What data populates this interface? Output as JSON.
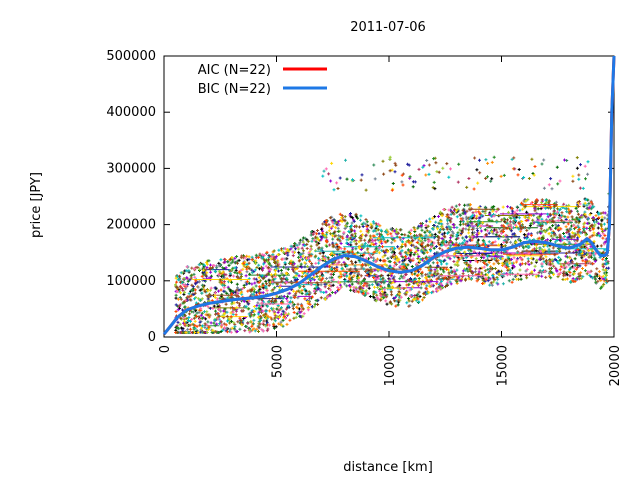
{
  "chart_data": {
    "type": "scatter",
    "title": "2011-07-06",
    "xlabel": "distance [km]",
    "ylabel": "price [JPY]",
    "xlim": [
      0,
      20000
    ],
    "ylim": [
      0,
      500000
    ],
    "x_ticks": [
      0,
      5000,
      10000,
      15000,
      20000
    ],
    "x_tick_labels": [
      "0",
      "5000",
      "10000",
      "15000",
      "20000"
    ],
    "y_ticks": [
      0,
      100000,
      200000,
      300000,
      400000,
      500000
    ],
    "y_tick_labels": [
      "0",
      "100000",
      "200000",
      "300000",
      "400000",
      "500000"
    ],
    "grid": false,
    "legend_position": "top-left",
    "series": [
      {
        "name": "AIC (N=22)",
        "color": "#ff0000",
        "x": [
          0,
          300,
          600,
          1000,
          1500,
          2000,
          2500,
          3000,
          3500,
          4000,
          4500,
          5000,
          5500,
          6000,
          6500,
          7000,
          7500,
          8000,
          8500,
          9000,
          9500,
          10000,
          10500,
          11000,
          11500,
          12000,
          12500,
          13000,
          13500,
          14000,
          14500,
          15000,
          15500,
          16000,
          16500,
          17000,
          17500,
          18000,
          18500,
          18800,
          19000,
          19200,
          19400,
          19600,
          19700,
          19800,
          19900,
          20000
        ],
        "y": [
          5000,
          20000,
          35000,
          48000,
          55000,
          60000,
          63000,
          66000,
          68000,
          70000,
          73000,
          78000,
          85000,
          95000,
          110000,
          125000,
          138000,
          145000,
          143000,
          135000,
          125000,
          118000,
          115000,
          118000,
          128000,
          142000,
          152000,
          158000,
          160000,
          158000,
          155000,
          155000,
          160000,
          168000,
          170000,
          168000,
          162000,
          158000,
          165000,
          175000,
          168000,
          155000,
          145000,
          145000,
          150000,
          200000,
          400000,
          500000
        ]
      },
      {
        "name": "BIC (N=22)",
        "color": "#1e78e6",
        "x": [
          0,
          300,
          600,
          1000,
          1500,
          2000,
          2500,
          3000,
          3500,
          4000,
          4500,
          5000,
          5500,
          6000,
          6500,
          7000,
          7500,
          8000,
          8500,
          9000,
          9500,
          10000,
          10500,
          11000,
          11500,
          12000,
          12500,
          13000,
          13500,
          14000,
          14500,
          15000,
          15500,
          16000,
          16500,
          17000,
          17500,
          18000,
          18500,
          18800,
          19000,
          19200,
          19400,
          19600,
          19700,
          19800,
          19900,
          20000
        ],
        "y": [
          5000,
          20000,
          35000,
          48000,
          55000,
          60000,
          63000,
          66000,
          68000,
          70000,
          73000,
          78000,
          85000,
          95000,
          110000,
          125000,
          138000,
          145000,
          143000,
          135000,
          125000,
          118000,
          115000,
          118000,
          128000,
          142000,
          152000,
          158000,
          160000,
          158000,
          155000,
          155000,
          160000,
          168000,
          170000,
          168000,
          162000,
          158000,
          165000,
          175000,
          168000,
          155000,
          145000,
          145000,
          150000,
          200000,
          400000,
          500000
        ]
      }
    ],
    "scatter_colors": [
      "#006400",
      "#228b22",
      "#8b4513",
      "#ff8c00",
      "#00c0c0",
      "#b03060",
      "#1e1e9c",
      "#9acd32",
      "#ff4500",
      "#000000",
      "#9400d3",
      "#20b2aa",
      "#808000",
      "#ffd700",
      "#2e8b57",
      "#a0522d",
      "#708090",
      "#ff69b4"
    ]
  }
}
